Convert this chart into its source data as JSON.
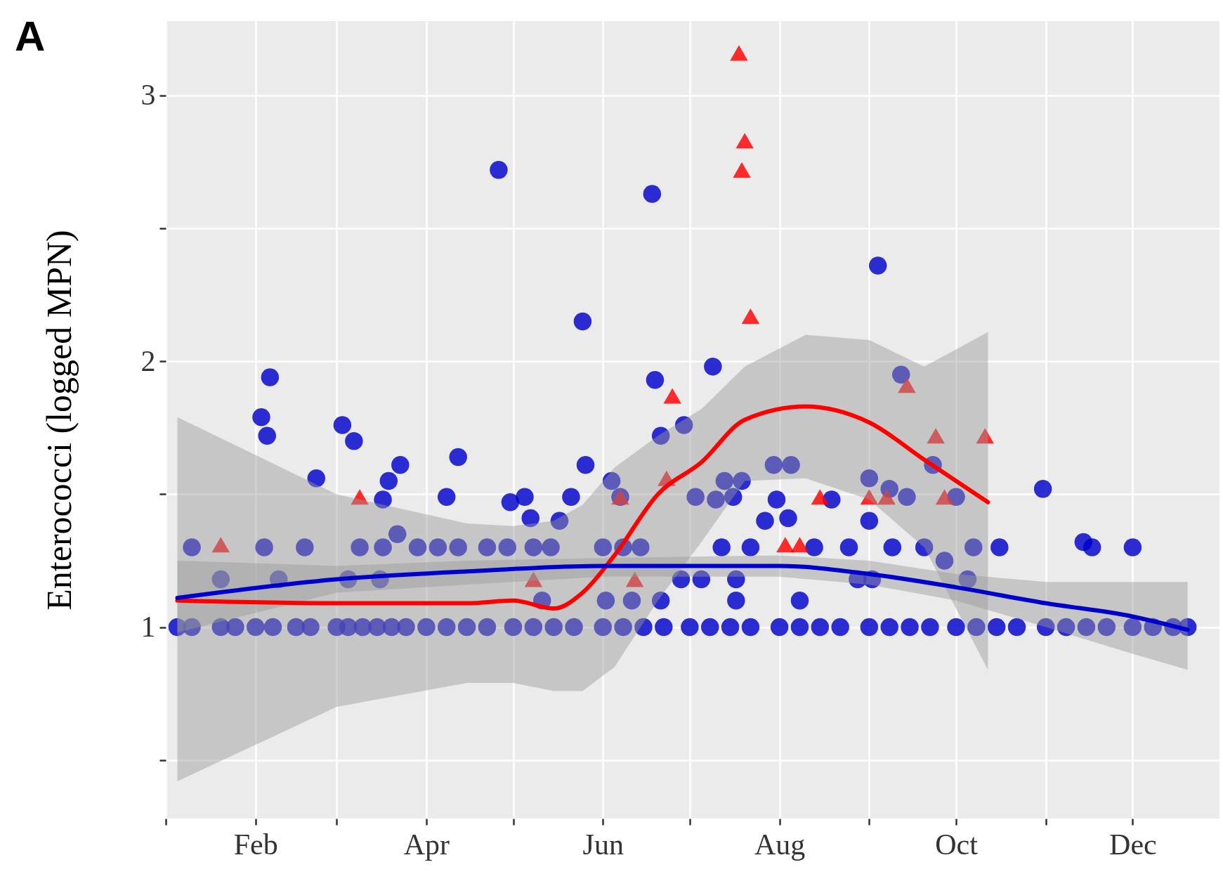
{
  "chart_data": {
    "type": "scatter",
    "title": "A",
    "ylabel": "Enterococci (logged MPN)",
    "xlim": [
      "--01-01",
      "--12-31"
    ],
    "xticks": [
      {
        "value": "--01-01",
        "label": null
      },
      {
        "value": "--02-01",
        "label": "Feb"
      },
      {
        "value": "--03-01",
        "label": null
      },
      {
        "value": "--04-01",
        "label": "Apr"
      },
      {
        "value": "--05-01",
        "label": null
      },
      {
        "value": "--06-01",
        "label": "Jun"
      },
      {
        "value": "--07-01",
        "label": null
      },
      {
        "value": "--08-01",
        "label": "Aug"
      },
      {
        "value": "--09-01",
        "label": null
      },
      {
        "value": "--10-01",
        "label": "Oct"
      },
      {
        "value": "--11-01",
        "label": null
      },
      {
        "value": "--12-01",
        "label": "Dec"
      }
    ],
    "ylim": [
      0.28,
      3.28
    ],
    "yticks": [
      {
        "value": 0.5,
        "label": null
      },
      1,
      {
        "value": 1.5,
        "label": null
      },
      2,
      {
        "value": 2.5,
        "label": null
      },
      3
    ],
    "grid": true,
    "series": [
      {
        "type": "scatter",
        "marker": "circle",
        "color": "#0000cc",
        "x": [
          "--01-05",
          "--01-10",
          "--01-20",
          "--01-25",
          "--02-01",
          "--02-07",
          "--02-15",
          "--02-20",
          "--03-01",
          "--03-05",
          "--03-10",
          "--03-15",
          "--03-20",
          "--03-25",
          "--04-01",
          "--04-08",
          "--04-15",
          "--04-22",
          "--05-01",
          "--05-08",
          "--05-15",
          "--05-22",
          "--06-01",
          "--06-08",
          "--06-15",
          "--06-22",
          "--07-01",
          "--07-08",
          "--07-15",
          "--07-22",
          "--08-01",
          "--08-08",
          "--08-15",
          "--08-22",
          "--09-01",
          "--09-08",
          "--09-15",
          "--09-22",
          "--10-01",
          "--10-08",
          "--10-15",
          "--10-22",
          "--11-01",
          "--11-08",
          "--11-15",
          "--11-22",
          "--12-01",
          "--12-08",
          "--12-15",
          "--12-20",
          "--01-10",
          "--02-04",
          "--02-18",
          "--03-09",
          "--03-17",
          "--03-29",
          "--04-05",
          "--04-12",
          "--04-22",
          "--04-29",
          "--05-08",
          "--05-14",
          "--06-01",
          "--06-08",
          "--06-14",
          "--07-12",
          "--07-22",
          "--08-13",
          "--08-25",
          "--09-09",
          "--09-20",
          "--10-07",
          "--10-16",
          "--11-17",
          "--01-20",
          "--02-09",
          "--03-05",
          "--03-16",
          "--06-28",
          "--07-05",
          "--07-17",
          "--08-28",
          "--09-02",
          "--10-05",
          "--05-11",
          "--06-02",
          "--06-11",
          "--06-21",
          "--07-17",
          "--08-08",
          "--02-06",
          "--02-03",
          "--02-05",
          "--02-22",
          "--03-03",
          "--03-07",
          "--03-17",
          "--03-19",
          "--03-23",
          "--03-22",
          "--04-08",
          "--04-12",
          "--04-26",
          "--04-30",
          "--05-05",
          "--05-07",
          "--05-17",
          "--05-21",
          "--05-25",
          "--05-26",
          "--06-04",
          "--06-07",
          "--06-18",
          "--06-19",
          "--06-21",
          "--06-29",
          "--07-09",
          "--07-03",
          "--07-10",
          "--07-16",
          "--07-13",
          "--07-19",
          "--07-27",
          "--07-30",
          "--07-31",
          "--08-04",
          "--08-05",
          "--08-19",
          "--09-01",
          "--09-01",
          "--09-04",
          "--09-08",
          "--09-12",
          "--09-14",
          "--09-23",
          "--09-27",
          "--10-01",
          "--10-31",
          "--11-14",
          "--12-01"
        ],
        "values": [
          1,
          1,
          1,
          1,
          1,
          1,
          1,
          1,
          1,
          1,
          1,
          1,
          1,
          1,
          1,
          1,
          1,
          1,
          1,
          1,
          1,
          1,
          1,
          1,
          1,
          1,
          1,
          1,
          1,
          1,
          1,
          1,
          1,
          1,
          1,
          1,
          1,
          1,
          1,
          1,
          1,
          1,
          1,
          1,
          1,
          1,
          1,
          1,
          1,
          1,
          1.3,
          1.3,
          1.3,
          1.3,
          1.3,
          1.3,
          1.3,
          1.3,
          1.3,
          1.3,
          1.3,
          1.3,
          1.3,
          1.3,
          1.3,
          1.3,
          1.3,
          1.3,
          1.3,
          1.3,
          1.3,
          1.3,
          1.3,
          1.3,
          1.18,
          1.18,
          1.18,
          1.18,
          1.18,
          1.18,
          1.18,
          1.18,
          1.18,
          1.18,
          1.1,
          1.1,
          1.1,
          1.1,
          1.1,
          1.1,
          1.94,
          1.79,
          1.72,
          1.56,
          1.76,
          1.7,
          1.48,
          1.55,
          1.61,
          1.35,
          1.49,
          1.64,
          2.72,
          1.47,
          1.49,
          1.41,
          1.4,
          1.49,
          2.15,
          1.61,
          1.55,
          1.49,
          2.63,
          1.93,
          1.72,
          1.76,
          1.98,
          1.49,
          1.48,
          1.49,
          1.55,
          1.55,
          1.4,
          1.61,
          1.48,
          1.41,
          1.61,
          1.48,
          1.4,
          1.56,
          2.36,
          1.52,
          1.95,
          1.49,
          1.61,
          1.25,
          1.49,
          1.52,
          1.32,
          1.3
        ]
      },
      {
        "type": "scatter",
        "marker": "triangle",
        "color": "#ff0000",
        "x": [
          "--07-18",
          "--07-20",
          "--07-19",
          "--07-22",
          "--06-25",
          "--06-23",
          "--03-09",
          "--01-20",
          "--05-08",
          "--06-12",
          "--08-03",
          "--08-08",
          "--08-15",
          "--09-01",
          "--09-07",
          "--09-14",
          "--09-24",
          "--09-27",
          "--10-11",
          "--06-07"
        ],
        "values": [
          3.16,
          2.83,
          2.72,
          2.17,
          1.87,
          1.56,
          1.49,
          1.31,
          1.18,
          1.18,
          1.31,
          1.31,
          1.49,
          1.49,
          1.49,
          1.91,
          1.72,
          1.49,
          1.72,
          1.49
        ]
      },
      {
        "type": "line",
        "color": "#ff0000",
        "x": [
          "--01-05",
          "--03-01",
          "--04-15",
          "--05-01",
          "--05-15",
          "--05-25",
          "--06-05",
          "--06-20",
          "--07-05",
          "--07-20",
          "--08-10",
          "--09-01",
          "--09-20",
          "--10-12"
        ],
        "values": [
          1.1,
          1.09,
          1.09,
          1.1,
          1.07,
          1.13,
          1.27,
          1.5,
          1.62,
          1.78,
          1.83,
          1.77,
          1.63,
          1.47
        ],
        "lower": [
          0.42,
          0.7,
          0.79,
          0.79,
          0.76,
          0.76,
          0.85,
          1.1,
          1.32,
          1.55,
          1.56,
          1.48,
          1.3,
          0.84
        ],
        "upper": [
          1.79,
          1.5,
          1.39,
          1.38,
          1.4,
          1.46,
          1.6,
          1.72,
          1.82,
          1.98,
          2.1,
          2.08,
          1.98,
          2.11
        ]
      },
      {
        "type": "line",
        "color": "#0000cc",
        "x": [
          "--01-05",
          "--03-01",
          "--04-15",
          "--06-01",
          "--08-01",
          "--09-01",
          "--10-01",
          "--11-01",
          "--12-01",
          "--12-20"
        ],
        "values": [
          1.11,
          1.18,
          1.21,
          1.23,
          1.23,
          1.2,
          1.15,
          1.09,
          1.04,
          0.99
        ],
        "lower": [
          0.98,
          1.13,
          1.16,
          1.19,
          1.19,
          1.16,
          1.1,
          1.0,
          0.9,
          0.84
        ],
        "upper": [
          1.25,
          1.23,
          1.25,
          1.26,
          1.27,
          1.25,
          1.2,
          1.17,
          1.17,
          1.17
        ]
      }
    ]
  }
}
